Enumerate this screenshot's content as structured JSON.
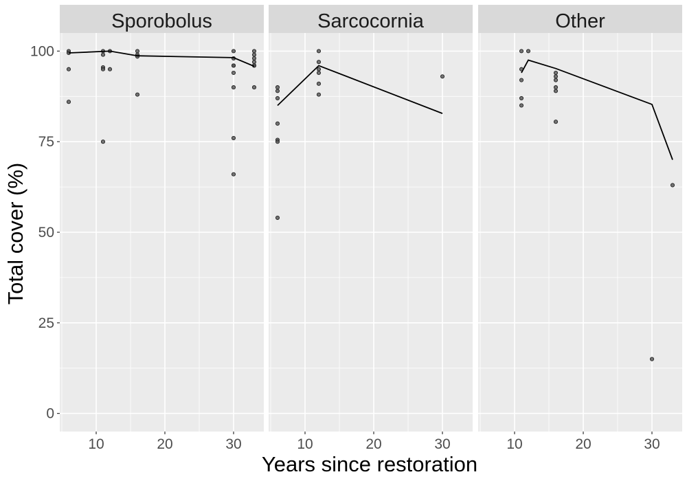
{
  "chart_data": {
    "type": "scatter",
    "xlabel": "Years since restoration",
    "ylabel": "Total cover (%)",
    "xlim": [
      4.7,
      34.4
    ],
    "ylim": [
      -5,
      105
    ],
    "x_ticks": [
      10,
      20,
      30
    ],
    "y_ticks": [
      0,
      25,
      50,
      75,
      100
    ],
    "grid": true,
    "colors": {
      "panel_bg": "#ebebeb",
      "strip_bg": "#d9d9d9",
      "grid": "#ffffff",
      "point": "#555555",
      "line": "#000000"
    },
    "panels": [
      {
        "name": "Sporobolus",
        "points": [
          [
            6,
            100
          ],
          [
            6,
            99.5
          ],
          [
            6,
            95
          ],
          [
            6,
            86
          ],
          [
            11,
            100
          ],
          [
            11,
            99
          ],
          [
            11,
            95.5
          ],
          [
            11,
            95
          ],
          [
            11,
            75
          ],
          [
            12,
            100
          ],
          [
            12,
            95
          ],
          [
            16,
            100
          ],
          [
            16,
            99
          ],
          [
            16,
            98.5
          ],
          [
            16,
            88
          ],
          [
            30,
            100
          ],
          [
            30,
            98
          ],
          [
            30,
            96
          ],
          [
            30,
            96
          ],
          [
            30,
            94
          ],
          [
            30,
            90
          ],
          [
            30,
            76
          ],
          [
            30,
            66
          ],
          [
            33,
            100
          ],
          [
            33,
            99
          ],
          [
            33,
            98
          ],
          [
            33,
            97
          ],
          [
            33,
            96
          ],
          [
            33,
            96
          ],
          [
            33,
            90
          ]
        ],
        "line": [
          [
            6,
            99.5
          ],
          [
            12,
            100
          ],
          [
            16,
            98.7
          ],
          [
            30,
            98.2
          ],
          [
            33,
            95.8
          ]
        ]
      },
      {
        "name": "Sarcocornia",
        "points": [
          [
            6,
            90
          ],
          [
            6,
            89
          ],
          [
            6,
            87
          ],
          [
            6,
            80
          ],
          [
            6,
            75.5
          ],
          [
            6,
            75
          ],
          [
            6,
            54
          ],
          [
            12,
            100
          ],
          [
            12,
            97
          ],
          [
            12,
            95
          ],
          [
            12,
            94
          ],
          [
            12,
            91
          ],
          [
            12,
            88
          ],
          [
            30,
            93
          ]
        ],
        "line": [
          [
            6,
            85
          ],
          [
            12,
            96
          ],
          [
            30,
            82.8
          ]
        ]
      },
      {
        "name": "Other",
        "points": [
          [
            11,
            100
          ],
          [
            11,
            95
          ],
          [
            11,
            92
          ],
          [
            11,
            87
          ],
          [
            11,
            85
          ],
          [
            12,
            100
          ],
          [
            16,
            94
          ],
          [
            16,
            93
          ],
          [
            16,
            92
          ],
          [
            16,
            90
          ],
          [
            16,
            89
          ],
          [
            16,
            80.5
          ],
          [
            30,
            15
          ],
          [
            33,
            63
          ]
        ],
        "line": [
          [
            11,
            94
          ],
          [
            12,
            97.5
          ],
          [
            16,
            95.2
          ],
          [
            30,
            85.3
          ],
          [
            33,
            70
          ]
        ]
      }
    ]
  }
}
